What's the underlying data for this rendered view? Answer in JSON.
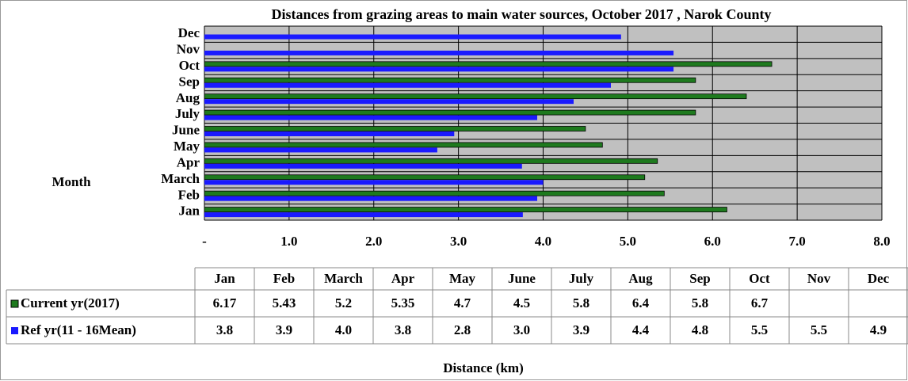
{
  "chart_data": {
    "type": "barh",
    "title": "Distances from grazing areas to main water sources, October  2017 ,  Narok County",
    "y_label": "Month",
    "x_label": "Distance (km)",
    "categories": [
      "Jan",
      "Feb",
      "March",
      "Apr",
      "May",
      "June",
      "July",
      "Aug",
      "Sep",
      "Oct",
      "Nov",
      "Dec"
    ],
    "series": [
      {
        "name": "Current yr(2017)",
        "color": "#1e7a1e",
        "values": [
          6.17,
          5.43,
          5.2,
          5.35,
          4.7,
          4.5,
          5.8,
          6.4,
          5.8,
          6.7,
          null,
          null
        ]
      },
      {
        "name": "Ref yr(11 - 16Mean)",
        "color": "#1a1aff",
        "values": [
          3.76,
          3.93,
          4.0,
          3.75,
          2.75,
          2.95,
          3.93,
          4.36,
          4.8,
          5.54,
          5.54,
          4.92
        ],
        "value_labels": [
          "3.8",
          "3.9",
          "4.0",
          "3.8",
          "2.8",
          "3.0",
          "3.9",
          "4.4",
          "4.8",
          "5.5",
          "5.5",
          "4.9"
        ]
      }
    ],
    "xlim": [
      0,
      8
    ],
    "xticks": [
      {
        "value": 0,
        "label": "-"
      },
      {
        "value": 1,
        "label": "1.0"
      },
      {
        "value": 2,
        "label": "2.0"
      },
      {
        "value": 3,
        "label": "3.0"
      },
      {
        "value": 4,
        "label": "4.0"
      },
      {
        "value": 5,
        "label": "5.0"
      },
      {
        "value": 6,
        "label": "6.0"
      },
      {
        "value": 7,
        "label": "7.0"
      },
      {
        "value": 8,
        "label": "8.0"
      }
    ],
    "grid": true,
    "plot_background": "#c0c0c0"
  }
}
